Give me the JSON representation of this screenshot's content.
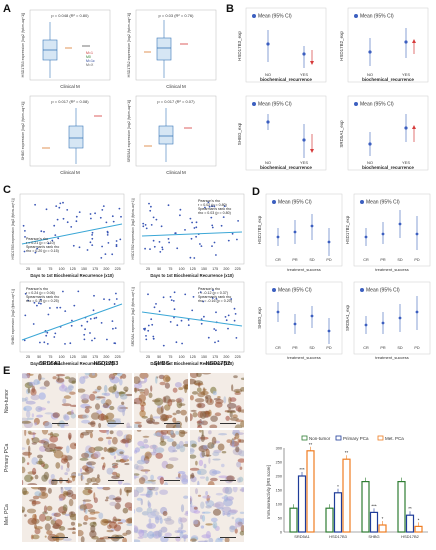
{
  "panels": [
    "A",
    "B",
    "C",
    "D",
    "E"
  ],
  "colors": {
    "box_fill": "#d6e6f4",
    "box_stroke": "#3a79b8",
    "ci_mean": "#3c5fc0",
    "trend_up": "#d63b3b",
    "trend_down": "#d63b3b",
    "scatter_dot": "#3a56b5",
    "fit_line": "#3ba7d6",
    "ihc_brown": "#8a5a34",
    "ihc_blue": "#8e9fc4",
    "bar_nontumor": "#2e7d32",
    "bar_primary": "#1f3c99",
    "bar_met": "#ef7d22"
  },
  "panel_a": {
    "legend": [
      "M=1",
      "M0",
      "M=1c",
      "M=X"
    ],
    "charts": [
      {
        "ylabel": "HSD17B3 expression [log2 (fpkm-uq+1)]",
        "xlabel": "Clinical M",
        "annotation": "p = 0.048 (R² = 0.80)"
      },
      {
        "ylabel": "HSD17B2 expression [log2 (fpkm-uq+1)]",
        "xlabel": "Clinical M",
        "annotation": "p = 0.03 (R² = 0.76)"
      },
      {
        "ylabel": "SHBG expression [log2 (fpkm-uq+1)]",
        "xlabel": "Clinical M",
        "annotation": "p = 0.017 (R² = 0.08)"
      },
      {
        "ylabel": "SRD5A1 expression [log2 (fpkm-uq+1)]",
        "xlabel": "Clinical M",
        "annotation": "p = 0.017 (R² = 0.07)"
      }
    ]
  },
  "panel_b": {
    "legend": "Mean (95% CI)",
    "xlabel": "biochemical_recurrence",
    "categories": [
      "NO",
      "YES"
    ],
    "charts": [
      {
        "ylabel": "HSD17B3_exp"
      },
      {
        "ylabel": "HSD17B2_exp"
      },
      {
        "ylabel": "SHBG_exp"
      },
      {
        "ylabel": "SRD5A1_exp"
      }
    ]
  },
  "panel_c": {
    "xlabel": "Days to 1st Biochemical Recurrence (x10)",
    "xticks": [
      "25",
      "50",
      "75",
      "100",
      "125",
      "150",
      "175",
      "200",
      "225"
    ],
    "charts": [
      {
        "ylabel": "HSD17B3 expression [log2 (fpkm-uq+1)]",
        "stats": [
          "Pearson's rho",
          "r = 0.21 (p = 0.10)",
          "Spearman's rank rho",
          "rho = 0.20 (p = 0.15)"
        ]
      },
      {
        "ylabel": "HSD17B2 expression [log2 (fpkm-uq+1)]",
        "stats": [
          "Pearson's rho",
          "r = 0.02 (p = 0.80)",
          "Spearman's rank rho",
          "rho = 0.03 (p = 0.80)"
        ]
      },
      {
        "ylabel": "SHBG expression [log2 (fpkm-uq+1)]",
        "stats": [
          "Pearson's rho",
          "r = 0.24 (p = 0.06)",
          "Spearman's rank rho",
          "rho = 0.15 (p = 0.25)"
        ]
      },
      {
        "ylabel": "SRD5A1 expression [log2 (fpkm-uq+1)]",
        "stats": [
          "Pearson's rho",
          "r = -0.12 (p = 0.37)",
          "Spearman's rank rho",
          "rho = -0.16 (p = 0.20)"
        ]
      }
    ]
  },
  "panel_d": {
    "legend": "Mean (95% CI)",
    "xlabel": "treatment_success",
    "categories": [
      "CR",
      "PR",
      "SD",
      "PD"
    ],
    "charts": [
      {
        "ylabel": "HSD17B3_exp"
      },
      {
        "ylabel": "HSD17B2_exp"
      },
      {
        "ylabel": "SHBG_exp"
      },
      {
        "ylabel": "SRD5A1_exp"
      }
    ]
  },
  "panel_e": {
    "columns": [
      "SRD5A1",
      "HSD17B3",
      "SHBG",
      "HSD17B2"
    ],
    "rows": [
      "Non-tumor",
      "Primary PCa",
      "Met. PCa"
    ],
    "bar_legend": [
      "Non-tumor",
      "Primary PCa",
      "Met. PCa"
    ],
    "bar_ylabel": "Immunoreactivity [IRS score]",
    "bar_categories": [
      "SRD5A1",
      "HSD17B3",
      "SHBG",
      "HSD17B2"
    ],
    "significance": [
      "***",
      "**",
      "*",
      "**",
      "***",
      "*",
      "**",
      "*"
    ]
  },
  "chart_data": [
    {
      "type": "bar",
      "title": "",
      "xlabel": "",
      "ylabel": "Immunoreactivity [IRS score]",
      "categories": [
        "SRD5A1",
        "HSD17B3",
        "SHBG",
        "HSD17B2"
      ],
      "series": [
        {
          "name": "Non-tumor",
          "values": [
            85,
            85,
            180,
            180
          ]
        },
        {
          "name": "Primary PCa",
          "values": [
            200,
            140,
            70,
            60
          ]
        },
        {
          "name": "Met. PCa",
          "values": [
            290,
            260,
            25,
            20
          ]
        }
      ],
      "ylim": [
        0,
        300
      ],
      "yticks": [
        "0",
        "50",
        "100",
        "150",
        "200",
        "250",
        "300"
      ]
    }
  ]
}
